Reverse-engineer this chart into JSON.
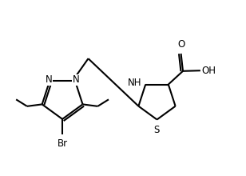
{
  "background_color": "#ffffff",
  "line_color": "#000000",
  "line_width": 1.5,
  "font_size": 8.5,
  "figsize": [
    3.08,
    2.2
  ],
  "dpi": 100,
  "xlim": [
    0,
    10
  ],
  "ylim": [
    0,
    7.2
  ]
}
